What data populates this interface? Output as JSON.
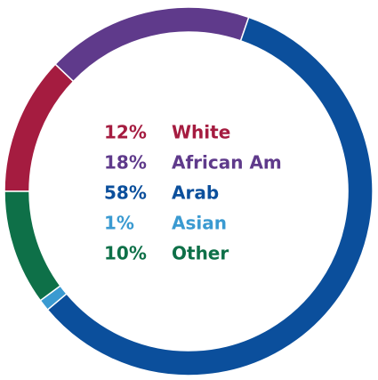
{
  "chart_data": {
    "type": "donut",
    "categories": [
      "White",
      "African Am",
      "Arab",
      "Asian",
      "Other"
    ],
    "values": [
      12,
      18,
      58,
      1,
      10
    ],
    "value_labels": [
      "12%",
      "18%",
      "58%",
      "1%",
      "10%"
    ],
    "colors": [
      "#a51c40",
      "#5f3a8b",
      "#0b4f9c",
      "#3a9ad1",
      "#0e7048"
    ]
  }
}
